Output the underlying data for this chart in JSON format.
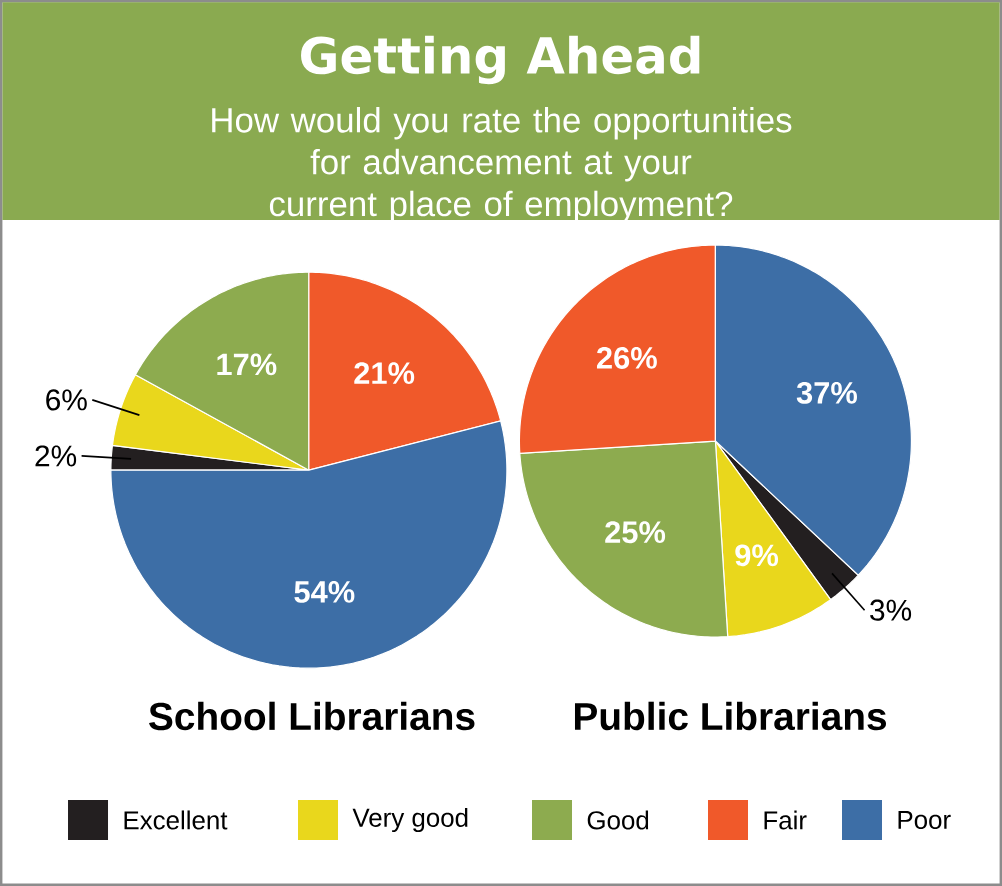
{
  "chart_data": {
    "type": "pie",
    "title": "Getting Ahead",
    "subtitle": "How would you rate the opportunities for advancement at your current place of employment?",
    "categories": [
      "Excellent",
      "Very good",
      "Good",
      "Fair",
      "Poor"
    ],
    "colors": [
      "#231f20",
      "#e9d71c",
      "#8dab4f",
      "#f0592a",
      "#3d6ea6"
    ],
    "legend": "bottom",
    "series": [
      {
        "name": "School Librarians",
        "values": [
          2,
          6,
          17,
          21,
          54
        ],
        "value_labels": [
          "2%",
          "6%",
          "17%",
          "21%",
          "54%"
        ]
      },
      {
        "name": "Public Librarians",
        "values": [
          3,
          9,
          25,
          26,
          37
        ],
        "value_labels": [
          "3%",
          "9%",
          "25%",
          "26%",
          "37%"
        ]
      }
    ]
  }
}
